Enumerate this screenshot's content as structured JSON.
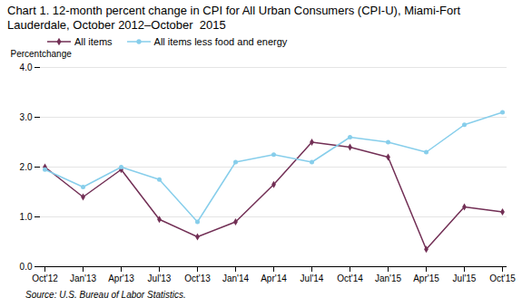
{
  "chart_data": {
    "type": "line",
    "title": "Chart 1. 12-month percent change in CPI for All Urban Consumers (CPI-U), Miami-Fort Lauderdale, October 2012–October  2015",
    "y_label": "Percentchange",
    "source": "Source: U.S. Bureau of Labor Statistics.",
    "categories": [
      "Oct'12",
      "Jan'13",
      "Apr'13",
      "Jul'13",
      "Oct'13",
      "Jan'14",
      "Apr'14",
      "Jul'14",
      "Oct'14",
      "Jan'15",
      "Apr'15",
      "Jul'15",
      "Oct'15"
    ],
    "series": [
      {
        "name": "All items",
        "color": "#722F55",
        "marker": "diamond",
        "values": [
          2.0,
          1.4,
          1.95,
          0.95,
          0.6,
          0.9,
          1.65,
          2.5,
          2.4,
          2.2,
          0.35,
          1.2,
          1.1
        ]
      },
      {
        "name": "All items less food and energy",
        "color": "#87CEEB",
        "marker": "circle",
        "values": [
          1.95,
          1.6,
          2.0,
          1.75,
          0.9,
          2.1,
          2.25,
          2.1,
          2.6,
          2.5,
          2.3,
          2.85,
          3.1
        ]
      }
    ],
    "ylim": [
      0,
      4
    ],
    "yticks": [
      0,
      1,
      2,
      3,
      4
    ],
    "grid": true,
    "legend": "upper left"
  }
}
